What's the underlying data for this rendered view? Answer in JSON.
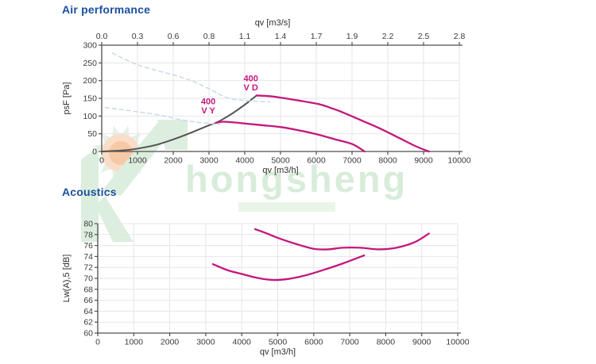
{
  "watermark": {
    "text": "hongsheng",
    "color": "#d8ecda"
  },
  "colors": {
    "title_blue": "#1d4fa1",
    "curve_magenta": "#c4177c",
    "curve_dark": "#53534e",
    "curve_guide": "#ccd9e8",
    "grid": "#e4e4ec",
    "axis": "#4f4f4f"
  },
  "chart_data": [
    {
      "id": "air",
      "type": "line",
      "title": "Air performance",
      "xlabel": "qv [m3/h]",
      "x2label": "qv [m3/s]",
      "ylabel": "psF [Pa]",
      "xlim": [
        0,
        10000
      ],
      "ylim": [
        0,
        300
      ],
      "grid": true,
      "legend": "none",
      "xticks": [
        0,
        1000,
        2000,
        3000,
        4000,
        5000,
        6000,
        7000,
        8000,
        9000,
        10000
      ],
      "x2ticklabels": [
        "0.0",
        "0.3",
        "0.6",
        "0.8",
        "1.1",
        "1.4",
        "1.7",
        "1.9",
        "2.2",
        "2.5",
        "2.8"
      ],
      "yticks": [
        0,
        50,
        100,
        150,
        200,
        250,
        300
      ],
      "series": [
        {
          "name": "operating-limit",
          "color": "#53534e",
          "width": 2,
          "dash": "",
          "points": [
            [
              0,
              0
            ],
            [
              600,
              3
            ],
            [
              1000,
              8
            ],
            [
              1500,
              18
            ],
            [
              2000,
              34
            ],
            [
              2500,
              53
            ],
            [
              3000,
              74
            ],
            [
              3200,
              81
            ],
            [
              3600,
              104
            ],
            [
              4000,
              132
            ],
            [
              4330,
              158
            ]
          ]
        },
        {
          "name": "400 V D",
          "color": "#c4177c",
          "width": 2.3,
          "dash": "",
          "points": [
            [
              4330,
              158
            ],
            [
              4700,
              156
            ],
            [
              5000,
              152
            ],
            [
              5500,
              144
            ],
            [
              6100,
              133
            ],
            [
              6400,
              123
            ],
            [
              6700,
              112
            ],
            [
              7300,
              86
            ],
            [
              7800,
              64
            ],
            [
              8300,
              39
            ],
            [
              8800,
              14
            ],
            [
              9150,
              0
            ]
          ]
        },
        {
          "name": "400 V Y",
          "color": "#c4177c",
          "width": 2.3,
          "dash": "",
          "points": [
            [
              3200,
              81
            ],
            [
              3400,
              84
            ],
            [
              3700,
              82
            ],
            [
              4000,
              79
            ],
            [
              4500,
              74
            ],
            [
              5000,
              69
            ],
            [
              5500,
              60
            ],
            [
              6000,
              49
            ],
            [
              6500,
              35
            ],
            [
              7000,
              21
            ],
            [
              7350,
              0
            ]
          ]
        },
        {
          "name": "guide-upper",
          "color": "#ccd9e8",
          "width": 1.5,
          "dash": "5 4",
          "points": [
            [
              300,
              278
            ],
            [
              1000,
              245
            ],
            [
              2000,
              216
            ],
            [
              2500,
              200
            ],
            [
              3000,
              177
            ],
            [
              3500,
              152
            ],
            [
              4000,
              144
            ],
            [
              4700,
              140
            ]
          ]
        },
        {
          "name": "guide-lower",
          "color": "#ccd9e8",
          "width": 1.5,
          "dash": "5 4",
          "points": [
            [
              100,
              124
            ],
            [
              1000,
              112
            ],
            [
              1600,
              103
            ],
            [
              2300,
              88
            ],
            [
              2800,
              81
            ],
            [
              3300,
              76
            ]
          ]
        }
      ],
      "annotations": [
        {
          "lines": [
            "400",
            "V D"
          ],
          "x": 4170,
          "y": 198,
          "color": "#c4177c"
        },
        {
          "lines": [
            "400",
            "V Y"
          ],
          "x": 2980,
          "y": 133,
          "color": "#c4177c"
        }
      ]
    },
    {
      "id": "acoustics",
      "type": "line",
      "title": "Acoustics",
      "xlabel": "qv [m3/h]",
      "ylabel": "Lw(A),5 [dB]",
      "xlim": [
        0,
        10000
      ],
      "ylim": [
        60,
        80
      ],
      "grid": true,
      "legend": "none",
      "xticks": [
        0,
        1000,
        2000,
        3000,
        4000,
        5000,
        6000,
        7000,
        8000,
        9000,
        10000
      ],
      "yticks": [
        60,
        62,
        64,
        66,
        68,
        70,
        72,
        74,
        76,
        78,
        80
      ],
      "series": [
        {
          "name": "noise-400-V-D",
          "color": "#c4177c",
          "width": 2.3,
          "dash": "",
          "points": [
            [
              4370,
              79.0
            ],
            [
              4700,
              78.2
            ],
            [
              5000,
              77.4
            ],
            [
              5500,
              76.3
            ],
            [
              6000,
              75.4
            ],
            [
              6400,
              75.3
            ],
            [
              6800,
              75.6
            ],
            [
              7300,
              75.6
            ],
            [
              7800,
              75.3
            ],
            [
              8300,
              75.6
            ],
            [
              8800,
              76.6
            ],
            [
              9200,
              78.2
            ]
          ]
        },
        {
          "name": "noise-400-V-Y",
          "color": "#c4177c",
          "width": 2.3,
          "dash": "",
          "points": [
            [
              3200,
              72.6
            ],
            [
              3600,
              71.5
            ],
            [
              4000,
              70.8
            ],
            [
              4500,
              70.0
            ],
            [
              4900,
              69.7
            ],
            [
              5300,
              69.9
            ],
            [
              5800,
              70.6
            ],
            [
              6300,
              71.6
            ],
            [
              6800,
              72.7
            ],
            [
              7400,
              74.2
            ]
          ]
        }
      ],
      "annotations": []
    }
  ]
}
